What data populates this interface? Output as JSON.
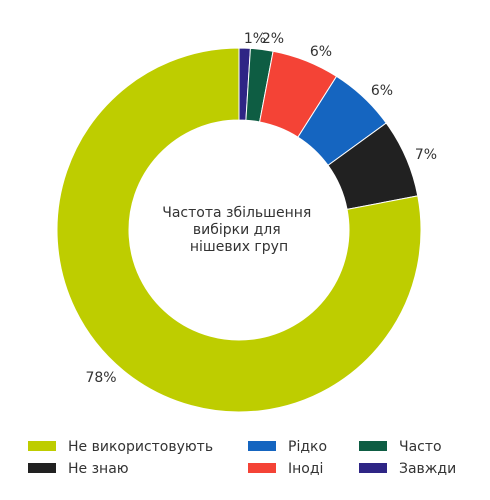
{
  "chart_data": {
    "type": "pie",
    "donut": true,
    "title": "",
    "center_label": [
      "Частота збільшення",
      "вибірки для",
      "нішевих груп"
    ],
    "slices": [
      {
        "name": "Завжди",
        "value": 1,
        "label": "1%",
        "color": "#2e2585"
      },
      {
        "name": "Часто",
        "value": 2,
        "label": "2%",
        "color": "#0e5d43"
      },
      {
        "name": "Іноді",
        "value": 6,
        "label": "6%",
        "color": "#f44336"
      },
      {
        "name": "Рідко",
        "value": 6,
        "label": "6%",
        "color": "#1565c0"
      },
      {
        "name": "Не знаю",
        "value": 7,
        "label": "7%",
        "color": "#212121"
      },
      {
        "name": "Не використовують",
        "value": 78,
        "label": "78%",
        "color": "#becd00"
      }
    ],
    "legend": {
      "placement": "bottom",
      "order": [
        "Не використовують",
        "Рідко",
        "Часто",
        "Не знаю",
        "Іноді",
        "Завжди"
      ]
    }
  }
}
